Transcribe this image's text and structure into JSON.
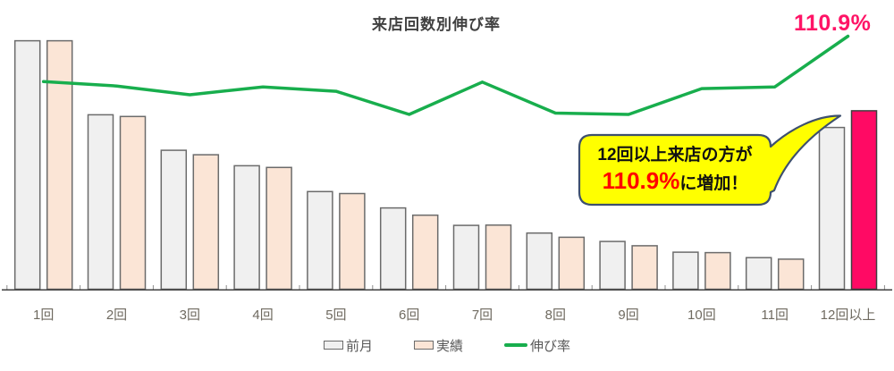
{
  "chart_data": {
    "type": "combo-bar-line",
    "title": "来店回数別伸び率",
    "categories": [
      "1回",
      "2回",
      "3回",
      "4回",
      "5回",
      "6回",
      "7回",
      "8回",
      "9回",
      "10回",
      "11回",
      "12回以上"
    ],
    "series": [
      {
        "name": "前月",
        "type": "bar",
        "fill": "#f0f0f0",
        "border": "#6b6b6b",
        "values": [
          100,
          70.2,
          55.9,
          49.7,
          39.3,
          32.7,
          25.7,
          22.6,
          19.2,
          14.9,
          12.7,
          65.1
        ]
      },
      {
        "name": "実績",
        "type": "bar",
        "fill": "#fbe5d6",
        "border": "#6b6b6b",
        "values": [
          100,
          69.5,
          54.1,
          49.0,
          38.5,
          29.8,
          25.8,
          20.9,
          17.5,
          14.7,
          12.1,
          71.8
        ],
        "highlight": {
          "index": 11,
          "fill": "#ff0a64",
          "border": "#3f3f3f"
        }
      },
      {
        "name": "伸び率",
        "type": "line",
        "color": "#18ae4d",
        "values_percent": [
          100.5,
          99.5,
          97.5,
          99.3,
          98.3,
          93.0,
          100.4,
          93.3,
          93.0,
          98.9,
          99.3,
          110.9
        ],
        "end_label": "110.9%",
        "end_label_color": "#ff1466"
      }
    ],
    "bar_axis": {
      "min": 0,
      "max": 102,
      "visible": false
    },
    "line_axis": {
      "min": 53,
      "max": 111,
      "visible": false,
      "unit": "%"
    },
    "grid": false,
    "legend_position": "bottom",
    "annotation": {
      "line1": "12回以上来店の方が",
      "value": "110.9%",
      "suffix": "に増加！",
      "box_fill": "#ffff00",
      "box_border": "#3e506e",
      "points_to": "12回以上 実績 bar"
    }
  }
}
